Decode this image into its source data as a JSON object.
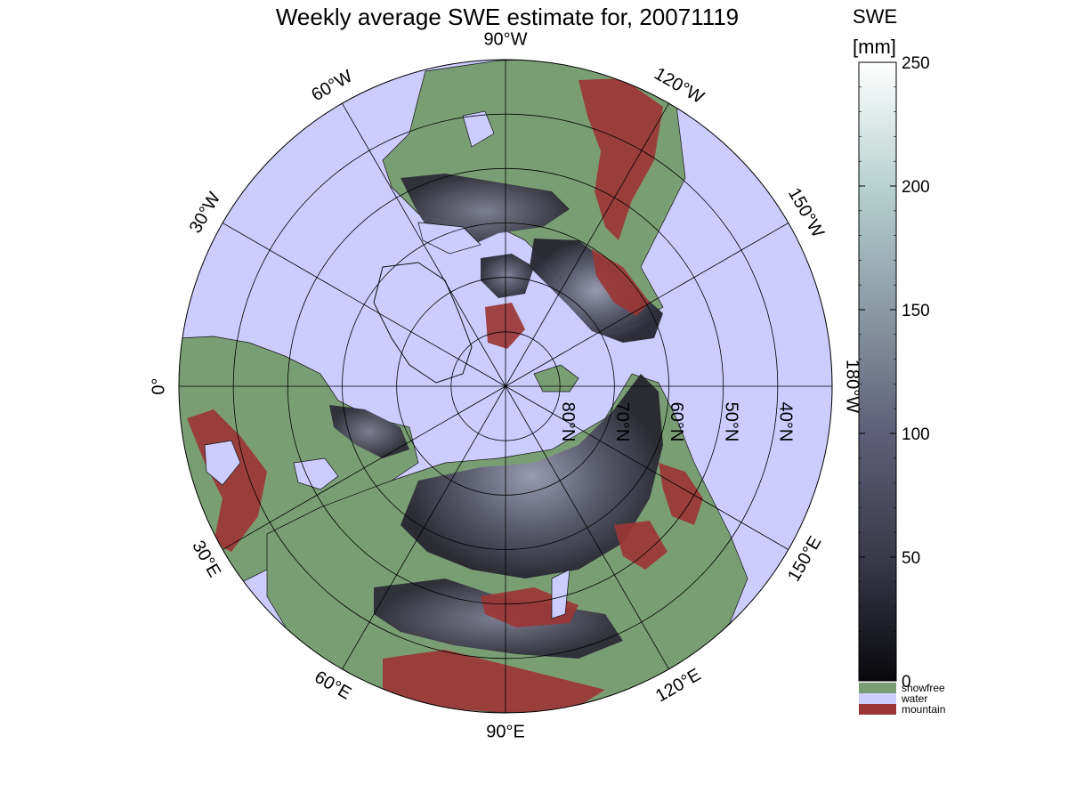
{
  "title": "Weekly average SWE estimate for, 20071119",
  "colorbar": {
    "title": "SWE",
    "unit": "[mm]",
    "ticks": [
      "0",
      "50",
      "100",
      "150",
      "200",
      "250"
    ],
    "tick_values": [
      0,
      50,
      100,
      150,
      200,
      250
    ],
    "range": [
      0,
      250
    ],
    "gradient": [
      "#08080c",
      "#3a3a4a",
      "#5e5e78",
      "#8a9aa4",
      "#b7d2cf",
      "#ffffff"
    ]
  },
  "legend": [
    {
      "label": "snowfree",
      "color": "#7a9e74"
    },
    {
      "label": "water",
      "color": "#ccccff"
    },
    {
      "label": "mountain",
      "color": "#9b3636"
    }
  ],
  "longitudes": [
    {
      "label": "90°W",
      "deg": 90
    },
    {
      "label": "120°W",
      "deg": 120
    },
    {
      "label": "150°W",
      "deg": 150
    },
    {
      "label": "180°W",
      "deg": 180
    },
    {
      "label": "150°E",
      "deg": 210
    },
    {
      "label": "120°E",
      "deg": 240
    },
    {
      "label": "90°E",
      "deg": 270
    },
    {
      "label": "60°E",
      "deg": 300
    },
    {
      "label": "30°E",
      "deg": 330
    },
    {
      "label": "0°",
      "deg": 0
    },
    {
      "label": "30°W",
      "deg": 30
    },
    {
      "label": "60°W",
      "deg": 60
    }
  ],
  "latitudes": [
    {
      "label": "80°N",
      "lat": 80
    },
    {
      "label": "70°N",
      "lat": 70
    },
    {
      "label": "60°N",
      "lat": 60
    },
    {
      "label": "50°N",
      "lat": 50
    },
    {
      "label": "40°N",
      "lat": 40
    }
  ],
  "colors": {
    "water": "#ccccff",
    "land": "#7a9e74",
    "mountain": "#9b3636",
    "snow_dark": "#2a2a35",
    "snow_mid": "#55556a",
    "snow_light": "#8e8ea6",
    "coast": "#111111"
  }
}
